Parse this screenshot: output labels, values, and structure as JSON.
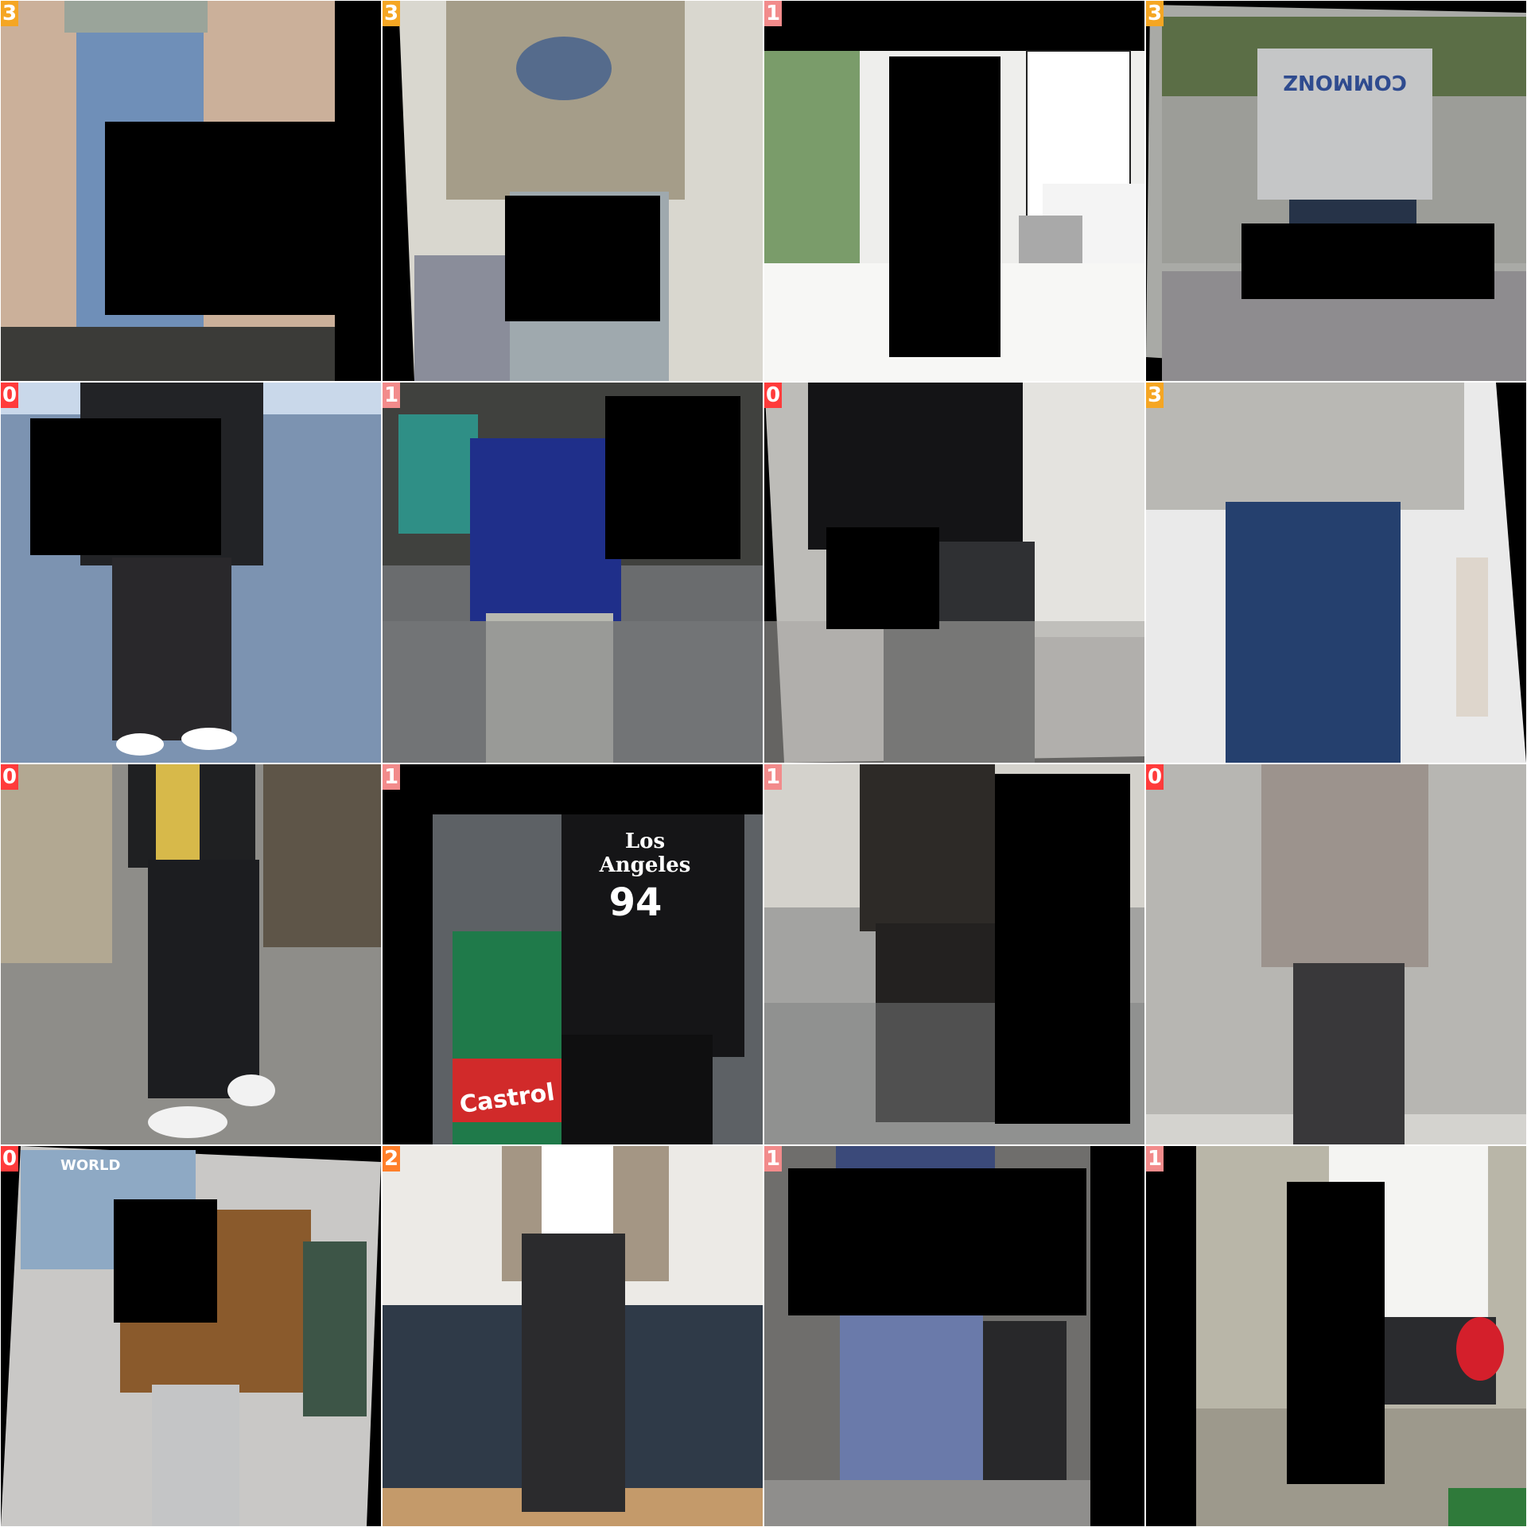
{
  "tiles": [
    {
      "label": "3",
      "badge_color": "#f5a623"
    },
    {
      "label": "3",
      "badge_color": "#f5a623"
    },
    {
      "label": "1",
      "badge_color": "#f28b8b"
    },
    {
      "label": "3",
      "badge_color": "#f5a623"
    },
    {
      "label": "0",
      "badge_color": "#ff3b3b"
    },
    {
      "label": "1",
      "badge_color": "#f28b8b"
    },
    {
      "label": "0",
      "badge_color": "#ff3b3b"
    },
    {
      "label": "3",
      "badge_color": "#f5a623"
    },
    {
      "label": "0",
      "badge_color": "#ff3b3b"
    },
    {
      "label": "1",
      "badge_color": "#f28b8b"
    },
    {
      "label": "1",
      "badge_color": "#f28b8b"
    },
    {
      "label": "0",
      "badge_color": "#ff3b3b"
    },
    {
      "label": "0",
      "badge_color": "#ff3b3b"
    },
    {
      "label": "2",
      "badge_color": "#ff7f2a"
    },
    {
      "label": "1",
      "badge_color": "#f28b8b"
    },
    {
      "label": "1",
      "badge_color": "#f28b8b"
    }
  ],
  "photo_text": {
    "sweatshirt_print": "COMMONZ",
    "jersey_print_line1": "Los",
    "jersey_print_line2": "Angeles",
    "jersey_number": "94",
    "drum_brand": "Castrol",
    "storefront_sign": "WORLD"
  }
}
